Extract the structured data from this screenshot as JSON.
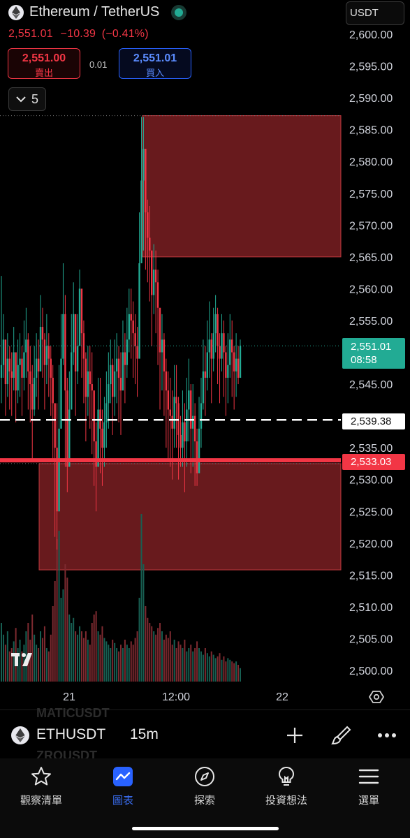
{
  "header": {
    "title": "Ethereum / TetherUS",
    "last_price": "2,551.01",
    "change": "−10.39",
    "change_pct": "(−0.41%)",
    "currency": "USDT",
    "collapse_count": "5"
  },
  "quote": {
    "sell_price": "2,551.00",
    "sell_label": "賣出",
    "spread": "0.01",
    "buy_price": "2,551.01",
    "buy_label": "買入"
  },
  "chart_data": {
    "type": "candlestick",
    "symbol": "ETHUSDT",
    "interval": "15m",
    "price_axis": {
      "ticks": [
        "2,600.00",
        "2,595.00",
        "2,590.00",
        "2,585.00",
        "2,580.00",
        "2,575.00",
        "2,570.00",
        "2,565.00",
        "2,560.00",
        "2,555.00",
        "2,550.00",
        "2,545.00",
        "2,535.00",
        "2,530.00",
        "2,525.00",
        "2,520.00",
        "2,515.00",
        "2,510.00",
        "2,505.00",
        "2,500.00"
      ],
      "tick_values": [
        2600,
        2595,
        2590,
        2585,
        2580,
        2575,
        2570,
        2565,
        2560,
        2555,
        2550,
        2545,
        2535,
        2530,
        2525,
        2520,
        2515,
        2510,
        2505,
        2500
      ],
      "ylim": [
        2500,
        2600
      ]
    },
    "time_axis": {
      "labels": [
        "21",
        "12:00",
        "22"
      ]
    },
    "price_tags": [
      {
        "price": "2,551.01",
        "countdown": "08:58",
        "color": "#22ab94"
      },
      {
        "price": "2,539.38",
        "color": "#ffffff"
      },
      {
        "price": "2,533.03",
        "color": "#f23645"
      }
    ],
    "zones": [
      {
        "name": "upper supply zone",
        "top": 2587.2,
        "bottom": 2565.0,
        "color": "#7a1f22"
      },
      {
        "name": "lower demand zone",
        "top": 2532.5,
        "bottom": 2515.8,
        "color": "#7a1f22"
      }
    ],
    "lines": [
      {
        "type": "dashed-horizontal",
        "price": 2539.38,
        "color": "#ffffff"
      },
      {
        "type": "solid-horizontal",
        "price": 2533.03,
        "color": "#f23645"
      },
      {
        "type": "dotted-last-price",
        "price": 2551.01,
        "color": "#22ab94"
      }
    ],
    "candles_close": [
      2548,
      2552,
      2545,
      2549,
      2547,
      2546,
      2550,
      2544,
      2548,
      2549,
      2546,
      2550,
      2552,
      2547,
      2545,
      2541,
      2546,
      2549,
      2547,
      2554,
      2552,
      2548,
      2551,
      2549,
      2546,
      2542,
      2535,
      2525,
      2538,
      2549,
      2556,
      2544,
      2532,
      2541,
      2550,
      2556,
      2547,
      2551,
      2560,
      2553,
      2549,
      2543,
      2547,
      2545,
      2544,
      2536,
      2532,
      2541,
      2538,
      2535,
      2539,
      2542,
      2545,
      2548,
      2543,
      2547,
      2549,
      2546,
      2544,
      2550,
      2548,
      2552,
      2556,
      2555,
      2553,
      2551,
      2549,
      2564,
      2577,
      2582,
      2572,
      2568,
      2566,
      2559,
      2563,
      2561,
      2557,
      2550,
      2552,
      2547,
      2544,
      2541,
      2540,
      2538,
      2543,
      2542,
      2537,
      2535,
      2539,
      2536,
      2541,
      2544,
      2538,
      2540,
      2536,
      2531,
      2538,
      2542,
      2547,
      2546,
      2550,
      2552,
      2549,
      2553,
      2556,
      2551,
      2549,
      2553,
      2550,
      2546,
      2548,
      2552,
      2550,
      2547,
      2549,
      2546,
      2551
    ],
    "candles_high": [
      2562,
      2556,
      2551,
      2553,
      2551,
      2550,
      2554,
      2550,
      2552,
      2553,
      2551,
      2555,
      2557,
      2553,
      2551,
      2548,
      2551,
      2553,
      2552,
      2559,
      2557,
      2553,
      2556,
      2553,
      2551,
      2548,
      2541,
      2542,
      2548,
      2556,
      2564,
      2559,
      2546,
      2547,
      2556,
      2561,
      2555,
      2556,
      2563,
      2559,
      2555,
      2550,
      2551,
      2551,
      2550,
      2544,
      2539,
      2546,
      2546,
      2541,
      2543,
      2547,
      2550,
      2552,
      2549,
      2552,
      2553,
      2551,
      2550,
      2555,
      2553,
      2557,
      2560,
      2560,
      2558,
      2556,
      2554,
      2572,
      2587,
      2587,
      2581,
      2574,
      2573,
      2566,
      2567,
      2566,
      2563,
      2556,
      2556,
      2553,
      2549,
      2547,
      2546,
      2544,
      2548,
      2548,
      2543,
      2540,
      2544,
      2542,
      2546,
      2549,
      2545,
      2545,
      2542,
      2538,
      2543,
      2546,
      2552,
      2551,
      2555,
      2558,
      2553,
      2557,
      2559,
      2557,
      2553,
      2556,
      2555,
      2551,
      2553,
      2556,
      2555,
      2551,
      2553,
      2551,
      2552
    ],
    "candles_low": [
      2542,
      2546,
      2540,
      2543,
      2541,
      2540,
      2544,
      2539,
      2542,
      2543,
      2540,
      2544,
      2546,
      2541,
      2539,
      2533,
      2540,
      2543,
      2541,
      2548,
      2546,
      2541,
      2545,
      2543,
      2540,
      2533,
      2521,
      2519,
      2525,
      2540,
      2548,
      2532,
      2528,
      2533,
      2544,
      2548,
      2540,
      2545,
      2553,
      2546,
      2542,
      2536,
      2540,
      2538,
      2534,
      2529,
      2525,
      2533,
      2531,
      2529,
      2532,
      2535,
      2538,
      2542,
      2537,
      2540,
      2542,
      2539,
      2537,
      2544,
      2542,
      2546,
      2550,
      2549,
      2546,
      2545,
      2543,
      2555,
      2564,
      2566,
      2563,
      2561,
      2558,
      2551,
      2556,
      2553,
      2548,
      2541,
      2544,
      2540,
      2535,
      2533,
      2532,
      2530,
      2535,
      2535,
      2530,
      2532,
      2532,
      2528,
      2532,
      2536,
      2531,
      2532,
      2529,
      2529,
      2531,
      2535,
      2541,
      2540,
      2544,
      2546,
      2542,
      2547,
      2550,
      2545,
      2542,
      2547,
      2543,
      2540,
      2542,
      2546,
      2543,
      2541,
      2543,
      2545,
      2546
    ],
    "volume_relative": [
      0.35,
      0.28,
      0.22,
      0.3,
      0.18,
      0.2,
      0.24,
      0.32,
      0.2,
      0.25,
      0.18,
      0.22,
      0.3,
      0.35,
      0.25,
      0.4,
      0.28,
      0.22,
      0.2,
      0.3,
      0.26,
      0.33,
      0.2,
      0.18,
      0.28,
      0.45,
      0.6,
      0.85,
      0.9,
      0.5,
      0.55,
      0.7,
      0.62,
      0.4,
      0.35,
      0.38,
      0.3,
      0.28,
      0.33,
      0.3,
      0.26,
      0.3,
      0.25,
      0.22,
      0.35,
      0.4,
      0.42,
      0.3,
      0.28,
      0.33,
      0.26,
      0.24,
      0.22,
      0.2,
      0.25,
      0.23,
      0.2,
      0.18,
      0.22,
      0.2,
      0.25,
      0.22,
      0.2,
      0.24,
      0.22,
      0.26,
      0.3,
      0.5,
      1.0,
      0.7,
      0.45,
      0.38,
      0.35,
      0.33,
      0.3,
      0.28,
      0.32,
      0.35,
      0.3,
      0.25,
      0.28,
      0.26,
      0.3,
      0.22,
      0.25,
      0.2,
      0.24,
      0.22,
      0.2,
      0.25,
      0.18,
      0.2,
      0.22,
      0.18,
      0.2,
      0.24,
      0.2,
      0.18,
      0.16,
      0.2,
      0.17,
      0.15,
      0.18,
      0.16,
      0.14,
      0.15,
      0.17,
      0.13,
      0.15,
      0.12,
      0.14,
      0.13,
      0.12,
      0.11,
      0.12,
      0.1,
      0.08
    ]
  },
  "toolbar": {
    "symbol": "ETHUSDT",
    "interval": "15m",
    "ghost_symbol_top": "MATICUSDT",
    "ghost_symbol_bottom": "ZROUSDT"
  },
  "colors": {
    "up": "#22ab94",
    "down": "#f23645",
    "accent": "#2962ff",
    "zone": "#7a1f22"
  },
  "tabs": [
    {
      "label": "觀察清單",
      "icon": "star-icon"
    },
    {
      "label": "圖表",
      "icon": "chart-icon"
    },
    {
      "label": "探索",
      "icon": "compass-icon"
    },
    {
      "label": "投資想法",
      "icon": "lightbulb-icon"
    },
    {
      "label": "選單",
      "icon": "menu-icon"
    }
  ]
}
